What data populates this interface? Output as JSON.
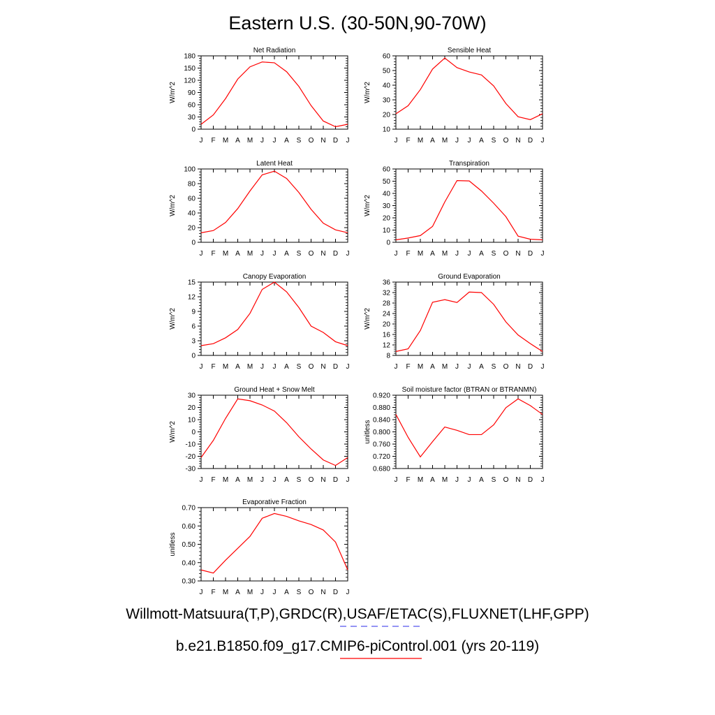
{
  "page": {
    "title": "Eastern U.S. (30-50N,90-70W)"
  },
  "legend": {
    "observations_label": "Willmott-Matsuura(T,P),GRDC(R),USAF/ETAC(S),FLUXNET(LHF,GPP)",
    "observations_color": "#5555ee",
    "observations_style": "dashed",
    "model_label": "b.e21.B1850.f09_g17.CMIP6-piControl.001 (yrs 20-119)",
    "model_color": "#ff0000",
    "model_style": "solid"
  },
  "chart_data": [
    {
      "type": "line",
      "title": "Net Radiation",
      "ylabel": "W/m^2",
      "x": [
        "J",
        "F",
        "M",
        "A",
        "M",
        "J",
        "J",
        "A",
        "S",
        "O",
        "N",
        "D",
        "J"
      ],
      "ylim": [
        0,
        180
      ],
      "yticks": [
        "0",
        "30",
        "60",
        "90",
        "120",
        "150",
        "180"
      ],
      "series": [
        {
          "color": "#ff0000",
          "values": [
            12,
            35,
            75,
            123,
            153,
            165,
            163,
            141,
            105,
            58,
            20,
            6,
            12
          ]
        }
      ]
    },
    {
      "type": "line",
      "title": "Sensible Heat",
      "ylabel": "W/m^2",
      "x": [
        "J",
        "F",
        "M",
        "A",
        "M",
        "J",
        "J",
        "A",
        "S",
        "O",
        "N",
        "D",
        "J"
      ],
      "ylim": [
        10,
        60
      ],
      "yticks": [
        "10",
        "20",
        "30",
        "40",
        "50",
        "60"
      ],
      "series": [
        {
          "color": "#ff0000",
          "values": [
            20.5,
            26,
            37,
            51,
            58.5,
            52,
            49,
            47,
            39.5,
            27.5,
            18.5,
            16.5,
            20.5
          ]
        }
      ]
    },
    {
      "type": "line",
      "title": "Latent Heat",
      "ylabel": "W/m^2",
      "x": [
        "J",
        "F",
        "M",
        "A",
        "M",
        "J",
        "J",
        "A",
        "S",
        "O",
        "N",
        "D",
        "J"
      ],
      "ylim": [
        0,
        100
      ],
      "yticks": [
        "0",
        "20",
        "40",
        "60",
        "80",
        "100"
      ],
      "series": [
        {
          "color": "#ff0000",
          "values": [
            13,
            16,
            27,
            46,
            70,
            92,
            97,
            87,
            68,
            45,
            26,
            17,
            13
          ]
        }
      ]
    },
    {
      "type": "line",
      "title": "Transpiration",
      "ylabel": "W/m^2",
      "x": [
        "J",
        "F",
        "M",
        "A",
        "M",
        "J",
        "J",
        "A",
        "S",
        "O",
        "N",
        "D",
        "J"
      ],
      "ylim": [
        0,
        60
      ],
      "yticks": [
        "0",
        "10",
        "20",
        "30",
        "40",
        "50",
        "60"
      ],
      "series": [
        {
          "color": "#ff0000",
          "values": [
            2,
            3.5,
            5.5,
            13,
            33,
            50.5,
            50.2,
            42,
            32,
            21,
            5,
            2.5,
            2
          ]
        }
      ]
    },
    {
      "type": "line",
      "title": "Canopy Evaporation",
      "ylabel": "W/m^2",
      "x": [
        "J",
        "F",
        "M",
        "A",
        "M",
        "J",
        "J",
        "A",
        "S",
        "O",
        "N",
        "D",
        "J"
      ],
      "ylim": [
        0,
        15
      ],
      "yticks": [
        "0",
        "3",
        "6",
        "9",
        "12",
        "15"
      ],
      "series": [
        {
          "color": "#ff0000",
          "values": [
            2,
            2.4,
            3.6,
            5.3,
            8.6,
            13.5,
            15,
            13,
            9.8,
            6,
            4.7,
            2.8,
            2
          ]
        }
      ]
    },
    {
      "type": "line",
      "title": "Ground Evaporation",
      "ylabel": "W/m^2",
      "x": [
        "J",
        "F",
        "M",
        "A",
        "M",
        "J",
        "J",
        "A",
        "S",
        "O",
        "N",
        "D",
        "J"
      ],
      "ylim": [
        8,
        36
      ],
      "yticks": [
        "8",
        "12",
        "16",
        "20",
        "24",
        "28",
        "32",
        "36"
      ],
      "series": [
        {
          "color": "#ff0000",
          "values": [
            9.5,
            10.5,
            17.5,
            28.3,
            29.3,
            28.2,
            32.2,
            32,
            27.5,
            20.8,
            15.8,
            12.5,
            9.5
          ]
        }
      ]
    },
    {
      "type": "line",
      "title": "Ground Heat + Snow Melt",
      "ylabel": "W/m^2",
      "x": [
        "J",
        "F",
        "M",
        "A",
        "M",
        "J",
        "J",
        "A",
        "S",
        "O",
        "N",
        "D",
        "J"
      ],
      "ylim": [
        -30,
        30
      ],
      "yticks": [
        "-30",
        "-20",
        "-10",
        "0",
        "10",
        "20",
        "30"
      ],
      "series": [
        {
          "color": "#ff0000",
          "values": [
            -21,
            -7,
            11,
            27,
            25.5,
            22,
            17,
            7.5,
            -4,
            -14,
            -23,
            -27.5,
            -21
          ]
        }
      ]
    },
    {
      "type": "line",
      "title": "Soil moisture factor (BTRAN or BTRANMN)",
      "ylabel": "unitless",
      "x": [
        "J",
        "F",
        "M",
        "A",
        "M",
        "J",
        "J",
        "A",
        "S",
        "O",
        "N",
        "D",
        "J"
      ],
      "ylim": [
        0.68,
        0.92
      ],
      "yticks": [
        "0.680",
        "0.720",
        "0.760",
        "0.800",
        "0.840",
        "0.880",
        "0.920"
      ],
      "series": [
        {
          "color": "#ff0000",
          "values": [
            0.857,
            0.782,
            0.718,
            0.768,
            0.816,
            0.805,
            0.791,
            0.791,
            0.823,
            0.879,
            0.908,
            0.886,
            0.857
          ]
        }
      ]
    },
    {
      "type": "line",
      "title": "Evaporative Fraction",
      "ylabel": "unitless",
      "x": [
        "J",
        "F",
        "M",
        "A",
        "M",
        "J",
        "J",
        "A",
        "S",
        "O",
        "N",
        "D",
        "J"
      ],
      "ylim": [
        0.3,
        0.7
      ],
      "yticks": [
        "0.30",
        "0.40",
        "0.50",
        "0.60",
        "0.70"
      ],
      "series": [
        {
          "color": "#ff0000",
          "values": [
            0.36,
            0.343,
            0.413,
            0.478,
            0.543,
            0.642,
            0.668,
            0.652,
            0.628,
            0.608,
            0.578,
            0.512,
            0.36
          ]
        }
      ]
    }
  ]
}
